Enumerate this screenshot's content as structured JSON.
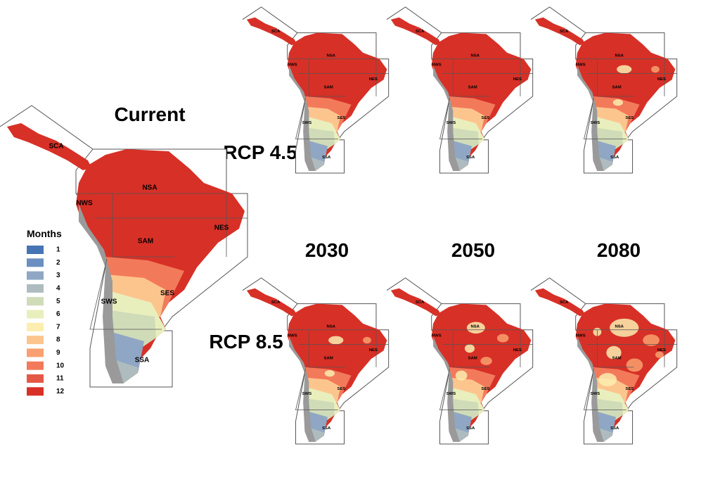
{
  "panel_labels": {
    "current": "Current",
    "rcp45": "RCP 4.5",
    "rcp85": "RCP 8.5"
  },
  "years": [
    "2030",
    "2050",
    "2080"
  ],
  "regions": [
    "SCA",
    "NWS",
    "NSA",
    "NES",
    "SAM",
    "SES",
    "SWS",
    "SSA"
  ],
  "legend": {
    "title": "Months",
    "items": [
      {
        "value": 1,
        "color": "#4575b4"
      },
      {
        "value": 2,
        "color": "#6b8fc0"
      },
      {
        "value": 3,
        "color": "#8fa7c4"
      },
      {
        "value": 4,
        "color": "#aebcbf"
      },
      {
        "value": 5,
        "color": "#d0dbb8"
      },
      {
        "value": 6,
        "color": "#e8efbd"
      },
      {
        "value": 7,
        "color": "#fcedb0"
      },
      {
        "value": 8,
        "color": "#fdc58e"
      },
      {
        "value": 9,
        "color": "#f9a070"
      },
      {
        "value": 10,
        "color": "#f27a5a"
      },
      {
        "value": 11,
        "color": "#e55846"
      },
      {
        "value": 12,
        "color": "#d73027"
      }
    ]
  }
}
